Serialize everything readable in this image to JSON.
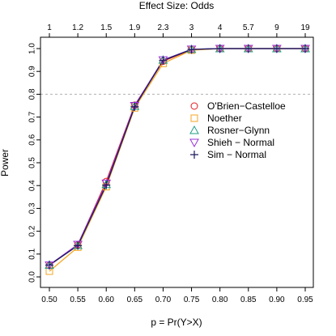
{
  "chart_data": {
    "type": "line",
    "title": "",
    "xlabel": "p = Pr(Y>X)",
    "ylabel": "Power",
    "top_axis_label": "Effect Size: Odds",
    "x": [
      0.5,
      0.55,
      0.6,
      0.65,
      0.7,
      0.75,
      0.8,
      0.85,
      0.9,
      0.95
    ],
    "x_tick_labels": [
      "0.50",
      "0.55",
      "0.60",
      "0.65",
      "0.70",
      "0.75",
      "0.80",
      "0.85",
      "0.90",
      "0.95"
    ],
    "top_tick_labels": [
      "1",
      "1.2",
      "1.5",
      "1.9",
      "2.3",
      "3",
      "4",
      "5.7",
      "9",
      "19"
    ],
    "y_ticks": [
      0.0,
      0.1,
      0.2,
      0.3,
      0.4,
      0.5,
      0.6,
      0.7,
      0.8,
      0.9,
      1.0
    ],
    "y_tick_labels": [
      "0.0",
      "0.1",
      "0.2",
      "0.3",
      "0.4",
      "0.5",
      "0.6",
      "0.7",
      "0.8",
      "0.9",
      "1.0"
    ],
    "xlim": [
      0.5,
      0.95
    ],
    "ylim": [
      0.0,
      1.0
    ],
    "reference_line": 0.8,
    "grid": false,
    "legend_position": "right",
    "series": [
      {
        "name": "O'Brien−Castelloe",
        "marker": "circle",
        "color": "#e31a1c",
        "values": [
          0.05,
          0.14,
          0.418,
          0.752,
          0.945,
          0.995,
          1.0,
          1.0,
          1.0,
          1.0
        ]
      },
      {
        "name": "Noether",
        "marker": "square",
        "color": "#f5a623",
        "values": [
          0.025,
          0.13,
          0.395,
          0.74,
          0.935,
          0.993,
          1.0,
          1.0,
          1.0,
          1.0
        ]
      },
      {
        "name": "Rosner−Glynn",
        "marker": "triangle",
        "color": "#1f9e89",
        "values": [
          0.052,
          0.138,
          0.405,
          0.748,
          0.95,
          0.997,
          1.0,
          1.0,
          1.0,
          1.0
        ]
      },
      {
        "name": "Shieh − Normal",
        "marker": "triangle-down",
        "color": "#9b30d9",
        "values": [
          0.052,
          0.142,
          0.41,
          0.75,
          0.95,
          0.997,
          1.0,
          1.0,
          1.0,
          1.0
        ]
      },
      {
        "name": "Sim − Normal",
        "marker": "plus",
        "color": "#1a1a5e",
        "values": [
          0.052,
          0.137,
          0.402,
          0.745,
          0.948,
          0.996,
          1.0,
          1.0,
          1.0,
          1.0
        ]
      }
    ]
  }
}
